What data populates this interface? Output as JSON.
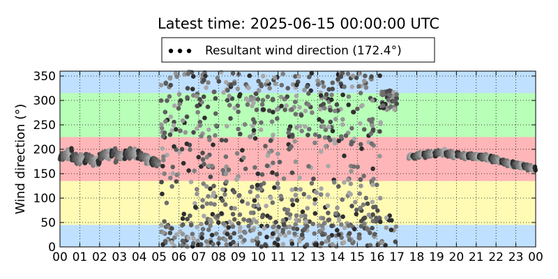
{
  "chart_data": {
    "type": "scatter",
    "title": "Latest time: 2025-06-15 00:00:00 UTC",
    "xlabel": "",
    "ylabel": "Wind direction (°)",
    "xlim": [
      0,
      24
    ],
    "ylim": [
      0,
      360
    ],
    "grid": true,
    "legend": {
      "placement": "top-center",
      "entries": [
        "Resultant wind direction (172.4°)"
      ]
    },
    "x_ticks": [
      {
        "value": 0,
        "label": "00"
      },
      {
        "value": 1,
        "label": "01"
      },
      {
        "value": 2,
        "label": "02"
      },
      {
        "value": 3,
        "label": "03"
      },
      {
        "value": 4,
        "label": "04"
      },
      {
        "value": 5,
        "label": "05"
      },
      {
        "value": 6,
        "label": "06"
      },
      {
        "value": 7,
        "label": "07"
      },
      {
        "value": 8,
        "label": "08"
      },
      {
        "value": 9,
        "label": "09"
      },
      {
        "value": 10,
        "label": "10"
      },
      {
        "value": 11,
        "label": "11"
      },
      {
        "value": 12,
        "label": "12"
      },
      {
        "value": 13,
        "label": "13"
      },
      {
        "value": 14,
        "label": "14"
      },
      {
        "value": 15,
        "label": "15"
      },
      {
        "value": 16,
        "label": "16"
      },
      {
        "value": 17,
        "label": "17"
      },
      {
        "value": 18,
        "label": "18"
      },
      {
        "value": 19,
        "label": "19"
      },
      {
        "value": 20,
        "label": "20"
      },
      {
        "value": 21,
        "label": "21"
      },
      {
        "value": 22,
        "label": "22"
      },
      {
        "value": 23,
        "label": "23"
      },
      {
        "value": 24,
        "label": "00"
      }
    ],
    "y_ticks": [
      {
        "value": 0,
        "label": "0"
      },
      {
        "value": 50,
        "label": "50"
      },
      {
        "value": 100,
        "label": "100"
      },
      {
        "value": 150,
        "label": "150"
      },
      {
        "value": 200,
        "label": "200"
      },
      {
        "value": 250,
        "label": "250"
      },
      {
        "value": 300,
        "label": "300"
      },
      {
        "value": 350,
        "label": "350"
      }
    ],
    "bands": [
      {
        "from": 0,
        "to": 45,
        "color": "#bfe0ff"
      },
      {
        "from": 45,
        "to": 135,
        "color": "#fffbb5"
      },
      {
        "from": 135,
        "to": 225,
        "color": "#ffb6b8"
      },
      {
        "from": 225,
        "to": 315,
        "color": "#b8ffb8"
      },
      {
        "from": 315,
        "to": 360,
        "color": "#bfe0ff"
      }
    ],
    "series": [
      {
        "name": "Resultant wind direction (172.4°)",
        "marker_colors": [
          "#4a4a4a",
          "#5e5e5e",
          "#6f6f6f",
          "#808080",
          "#959595",
          "#a8a8a8",
          "#2e2e2e"
        ],
        "x": [],
        "y": []
      }
    ]
  }
}
